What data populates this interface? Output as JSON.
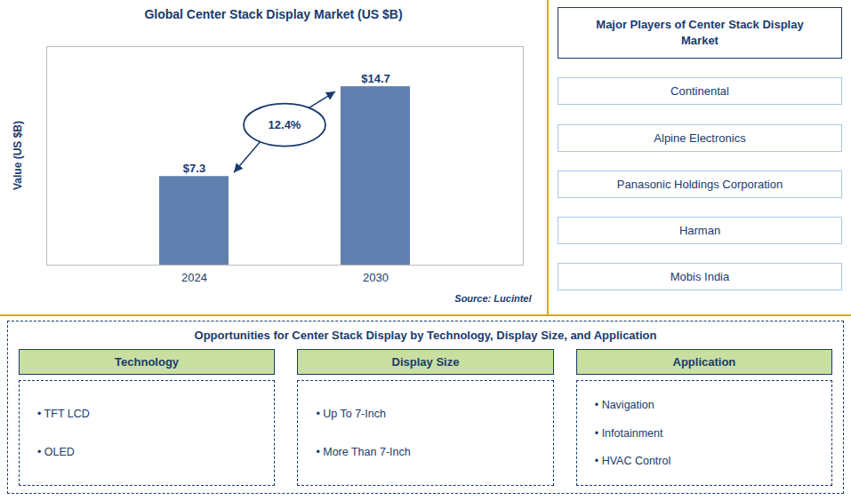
{
  "chart_data": {
    "type": "bar",
    "title": "Global Center Stack Display Market (US $B)",
    "categories": [
      "2024",
      "2030"
    ],
    "values": [
      7.3,
      14.7
    ],
    "value_labels": [
      "$7.3",
      "$14.7"
    ],
    "data_labels": true,
    "color": "#6080b0",
    "ylabel": "Value (US $B)",
    "ylim": [
      0,
      18
    ],
    "tick_labels": "x",
    "grid": false,
    "annotations": [
      "12.4%"
    ],
    "source": "Source: Lucintel",
    "side_panel": {
      "title": "Major Players of Center Stack Display\nMarket",
      "items": [
        "Continental",
        "Alpine Electronics",
        "Panasonic Holdings Corporation",
        "Harman",
        "Mobis India"
      ]
    },
    "bottom_panel": {
      "title": "Opportunities for Center Stack Display by Technology, Display Size, and Application",
      "columns": [
        {
          "header": "Technology",
          "items": [
            "• TFT LCD",
            "• OLED"
          ]
        },
        {
          "header": "Display Size",
          "items": [
            "• Up To 7-Inch",
            "• More Than 7-Inch"
          ]
        },
        {
          "header": "Application",
          "items": [
            "• Navigation",
            "• Infotainment",
            "• HVAC Control"
          ]
        }
      ]
    }
  }
}
